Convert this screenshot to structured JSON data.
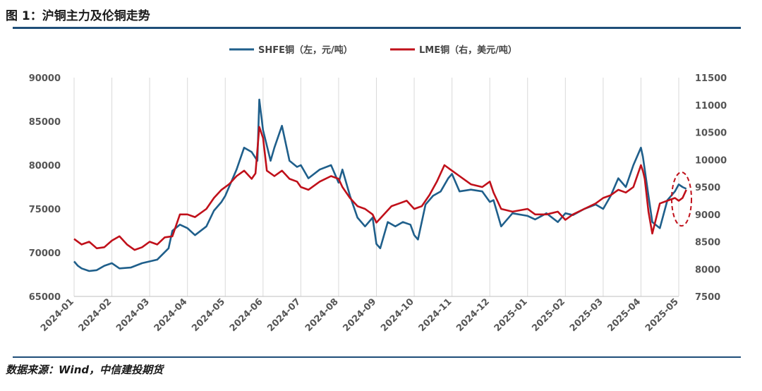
{
  "header": {
    "title": "图 1：沪铜主力及伦铜走势"
  },
  "footer": {
    "source": "数据来源：Wind，中信建投期货"
  },
  "colors": {
    "shfe": "#1f5f8b",
    "lme": "#c0101a",
    "rule": "#1f4e79",
    "grid": "#d9d9d9",
    "annotation": "#c0101a"
  },
  "chart_data": {
    "type": "line",
    "title": "沪铜主力及伦铜走势",
    "x_tick_labels": [
      "2024-01",
      "2024-02",
      "2024-03",
      "2024-04",
      "2024-05",
      "2024-06",
      "2024-07",
      "2024-08",
      "2024-09",
      "2024-10",
      "2024-11",
      "2024-12",
      "2025-01",
      "2025-02",
      "2025-03",
      "2025-04",
      "2025-05"
    ],
    "y_left": {
      "ticks": [
        65000,
        70000,
        75000,
        80000,
        85000,
        90000
      ],
      "range": [
        65000,
        90000
      ]
    },
    "y_right": {
      "ticks": [
        7500,
        8000,
        8500,
        9000,
        9500,
        10000,
        10500,
        11000,
        11500
      ],
      "range": [
        7500,
        11500
      ]
    },
    "x_range": [
      0,
      16
    ],
    "series": [
      {
        "name": "SHFE铜（左，元/吨）",
        "axis": "left",
        "x": [
          0,
          0.1,
          0.2,
          0.4,
          0.6,
          0.8,
          1.0,
          1.2,
          1.5,
          1.8,
          2.0,
          2.2,
          2.5,
          2.6,
          2.8,
          3.0,
          3.2,
          3.5,
          3.7,
          3.9,
          4.0,
          4.1,
          4.3,
          4.5,
          4.7,
          4.85,
          4.9,
          5.0,
          5.2,
          5.3,
          5.5,
          5.7,
          5.9,
          6.0,
          6.2,
          6.5,
          6.8,
          7.0,
          7.1,
          7.3,
          7.5,
          7.7,
          7.9,
          8.0,
          8.1,
          8.3,
          8.5,
          8.7,
          8.9,
          9.0,
          9.1,
          9.3,
          9.5,
          9.7,
          9.9,
          10.0,
          10.2,
          10.5,
          10.8,
          11.0,
          11.1,
          11.3,
          11.6,
          12.0,
          12.2,
          12.5,
          12.8,
          13.0,
          13.2,
          13.5,
          13.8,
          14.0,
          14.2,
          14.4,
          14.6,
          14.8,
          15.0,
          15.05,
          15.1,
          15.2,
          15.3,
          15.5,
          15.7,
          15.9,
          16.0,
          16.1,
          16.2
        ],
        "values": [
          69000,
          68500,
          68200,
          67900,
          68000,
          68500,
          68800,
          68200,
          68300,
          68800,
          69000,
          69200,
          70500,
          72500,
          73200,
          72800,
          72000,
          73000,
          74800,
          75800,
          76500,
          77500,
          79500,
          82000,
          81500,
          80500,
          87500,
          84000,
          80500,
          82000,
          84500,
          80500,
          79800,
          80000,
          78500,
          79500,
          80000,
          78000,
          79500,
          76500,
          74000,
          73000,
          74000,
          71000,
          70500,
          73500,
          73000,
          73500,
          73200,
          72000,
          71500,
          75500,
          76500,
          77000,
          78500,
          79000,
          77000,
          77200,
          77000,
          75800,
          76000,
          73000,
          74500,
          74200,
          73800,
          74500,
          73500,
          74500,
          74300,
          75000,
          75500,
          75000,
          76500,
          78500,
          77500,
          80000,
          82000,
          81000,
          79500,
          76500,
          73500,
          72800,
          76000,
          77000,
          77800,
          77500,
          77300
        ]
      },
      {
        "name": "LME铜（右，美元/吨）",
        "axis": "right",
        "x": [
          0,
          0.2,
          0.4,
          0.6,
          0.8,
          1.0,
          1.2,
          1.4,
          1.6,
          1.8,
          2.0,
          2.2,
          2.4,
          2.6,
          2.8,
          3.0,
          3.2,
          3.5,
          3.7,
          3.9,
          4.1,
          4.3,
          4.5,
          4.7,
          4.8,
          4.9,
          5.0,
          5.1,
          5.3,
          5.5,
          5.7,
          5.9,
          6.0,
          6.2,
          6.5,
          6.8,
          7.0,
          7.1,
          7.3,
          7.5,
          7.7,
          7.9,
          8.0,
          8.2,
          8.4,
          8.6,
          8.8,
          9.0,
          9.2,
          9.4,
          9.6,
          9.8,
          10.0,
          10.2,
          10.5,
          10.8,
          11.0,
          11.1,
          11.3,
          11.6,
          12.0,
          12.2,
          12.5,
          12.8,
          13.0,
          13.2,
          13.5,
          13.8,
          14.0,
          14.2,
          14.4,
          14.6,
          14.8,
          15.0,
          15.05,
          15.1,
          15.2,
          15.3,
          15.5,
          15.7,
          15.9,
          16.0,
          16.1,
          16.2
        ],
        "values": [
          8550,
          8450,
          8500,
          8380,
          8400,
          8520,
          8600,
          8450,
          8350,
          8400,
          8500,
          8450,
          8580,
          8600,
          9000,
          9000,
          8950,
          9100,
          9300,
          9450,
          9550,
          9700,
          9800,
          9650,
          9750,
          10600,
          10400,
          9800,
          9700,
          9800,
          9650,
          9600,
          9500,
          9450,
          9600,
          9700,
          9650,
          9500,
          9300,
          9150,
          9100,
          9000,
          8850,
          9000,
          9150,
          9200,
          9250,
          9100,
          9150,
          9350,
          9600,
          9900,
          9800,
          9700,
          9550,
          9500,
          9600,
          9400,
          9100,
          9050,
          9100,
          9000,
          9000,
          9050,
          8900,
          9000,
          9100,
          9200,
          9300,
          9350,
          9450,
          9400,
          9500,
          9900,
          9800,
          9650,
          9050,
          8650,
          9200,
          9250,
          9300,
          9250,
          9300,
          9450
        ]
      }
    ],
    "legend": {
      "position": "top-center"
    },
    "annotation": "dashed-ellipse-at-latest-data"
  }
}
